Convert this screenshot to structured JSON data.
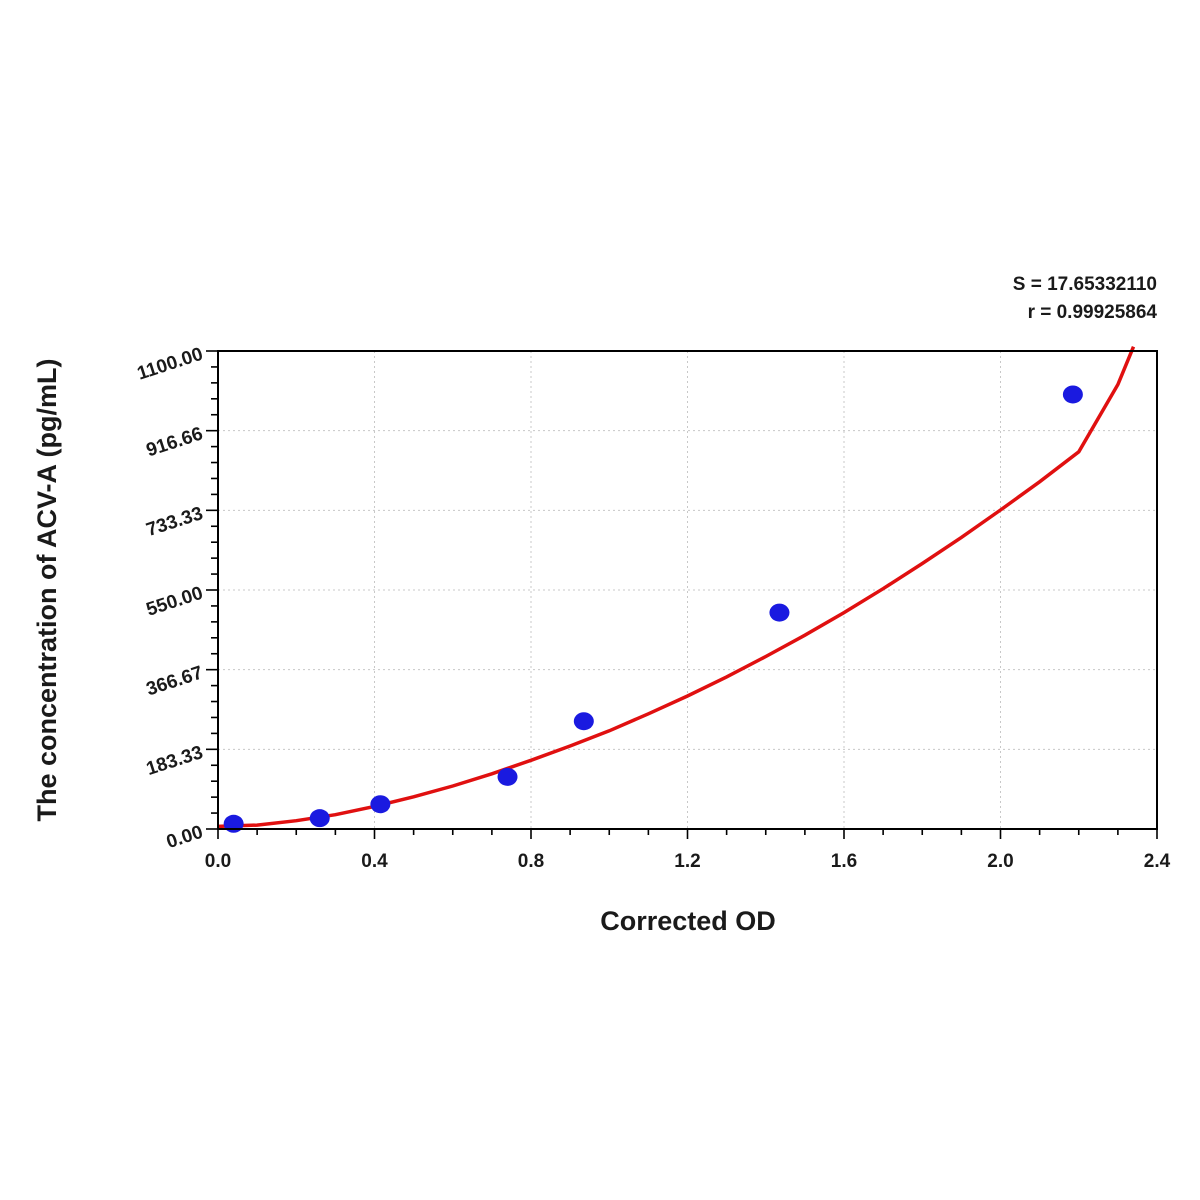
{
  "chart_data": {
    "type": "scatter",
    "title": "",
    "xlabel": "Corrected OD",
    "ylabel": "The concentration of ACV-A (pg/mL)",
    "xlim": [
      0.0,
      2.4
    ],
    "ylim": [
      0.0,
      1100.0
    ],
    "x_ticks": [
      "0.0",
      "0.4",
      "0.8",
      "1.2",
      "1.6",
      "2.0",
      "2.4"
    ],
    "y_ticks": [
      "0.00",
      "183.33",
      "366.67",
      "550.00",
      "733.33",
      "916.66",
      "1100.00"
    ],
    "grid": true,
    "stats": {
      "s_label": "S = 17.65332110",
      "r_label": "r = 0.99925864"
    },
    "series": [
      {
        "kind": "points",
        "color": "#1a1ae0",
        "x": [
          0.04,
          0.26,
          0.415,
          0.74,
          0.935,
          1.435,
          2.185
        ],
        "y": [
          12,
          25,
          57,
          120,
          248,
          498,
          1000
        ]
      },
      {
        "kind": "fit-curve",
        "color": "#e01010",
        "x": [
          0.0,
          0.1,
          0.2,
          0.3,
          0.4,
          0.5,
          0.6,
          0.7,
          0.8,
          0.9,
          1.0,
          1.1,
          1.2,
          1.3,
          1.4,
          1.5,
          1.6,
          1.7,
          1.8,
          1.9,
          2.0,
          2.1,
          2.2,
          2.3,
          2.34
        ],
        "y": [
          6,
          9,
          19,
          33,
          52,
          74,
          99,
          127,
          158,
          191,
          226,
          265,
          306,
          350,
          397,
          446,
          498,
          553,
          611,
          671,
          734,
          799,
          868,
          1023,
          1110
        ]
      }
    ]
  }
}
